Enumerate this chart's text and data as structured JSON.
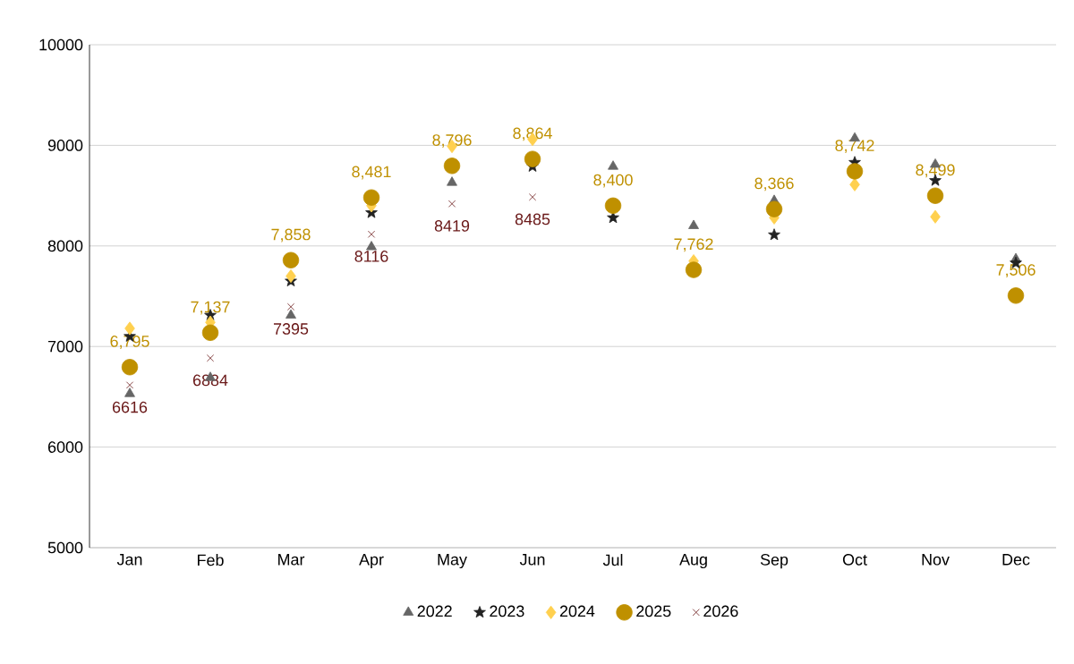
{
  "chart_data": {
    "type": "scatter",
    "categories": [
      "Jan",
      "Feb",
      "Mar",
      "Apr",
      "May",
      "Jun",
      "Jul",
      "Aug",
      "Sep",
      "Oct",
      "Nov",
      "Dec"
    ],
    "ylim": [
      5000,
      10000
    ],
    "yticks": [
      5000,
      6000,
      7000,
      8000,
      9000,
      10000
    ],
    "grid": "y",
    "legend": "bottom",
    "series": [
      {
        "name": "2022",
        "color": "#666666",
        "marker": "triangle",
        "values": [
          6530,
          6690,
          7310,
          7990,
          8630,
          null,
          8790,
          8200,
          8450,
          9070,
          8810,
          7870
        ]
      },
      {
        "name": "2023",
        "color": "#222222",
        "marker": "star",
        "values": [
          7100,
          7310,
          7650,
          8330,
          null,
          8790,
          8280,
          null,
          8110,
          8830,
          8650,
          7830
        ]
      },
      {
        "name": "2024",
        "color": "#ffd04f",
        "marker": "diamond",
        "values": [
          7180,
          7240,
          7700,
          8400,
          8990,
          9060,
          null,
          7850,
          8280,
          8610,
          8290,
          null
        ]
      },
      {
        "name": "2025",
        "color": "#bf9000",
        "marker": "circle",
        "values": [
          6795,
          7137,
          7858,
          8481,
          8796,
          8864,
          8400,
          7762,
          8366,
          8742,
          8499,
          7506
        ],
        "value_labels": [
          "6,795",
          "7,137",
          "7,858",
          "8,481",
          "8,796",
          "8,864",
          "8,400",
          "7,762",
          "8,366",
          "8,742",
          "8,499",
          "7,506"
        ]
      },
      {
        "name": "2026",
        "color": "#6b1a1a",
        "marker": "cross",
        "values": [
          6616,
          6884,
          7395,
          8116,
          8419,
          8485,
          null,
          null,
          null,
          null,
          null,
          null
        ],
        "value_labels": [
          "6616",
          "6884",
          "7395",
          "8116",
          "8419",
          "8485",
          null,
          null,
          null,
          null,
          null,
          null
        ]
      }
    ]
  }
}
